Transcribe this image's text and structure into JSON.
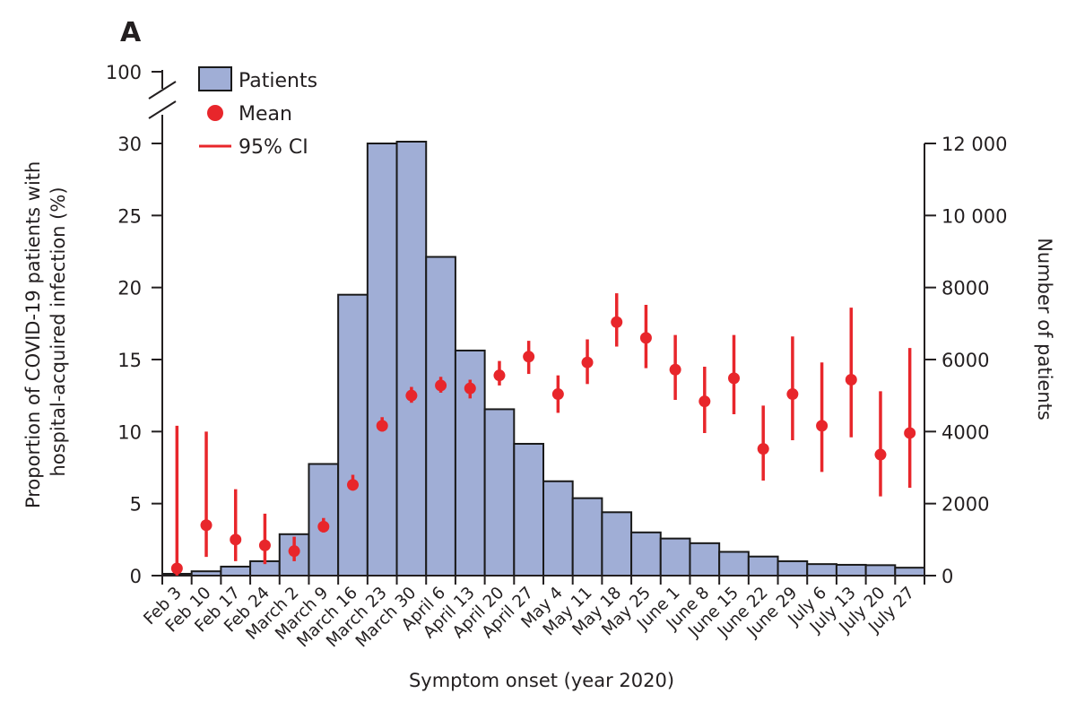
{
  "panel_label": "A",
  "colors": {
    "bar_fill": "#a0aed6",
    "bar_stroke": "#1a1a1a",
    "point": "#e8262b",
    "axis": "#231f20"
  },
  "chart_data": {
    "type": "bar",
    "xlabel": "Symptom onset (year 2020)",
    "ylabel": "Proportion of COVID-19 patients with hospital-acquired infection  (%)",
    "ylabel_lines": [
      "Proportion of COVID-19 patients with",
      "hospital-acquired infection  (%)"
    ],
    "y2label": "Number of patients",
    "ylim": [
      0,
      30
    ],
    "y_break_label": "100",
    "y_ticks": [
      "0",
      "5",
      "10",
      "15",
      "20",
      "25",
      "30"
    ],
    "y2lim": [
      0,
      12000
    ],
    "y2_ticks": [
      "0",
      "2000",
      "4000",
      "6000",
      "8000",
      "10 000",
      "12 000"
    ],
    "categories": [
      "Feb 3",
      "Feb 10",
      "Feb 17",
      "Feb 24",
      "March 2",
      "March 9",
      "March 16",
      "March 23",
      "March 30",
      "April 6",
      "April 13",
      "April 20",
      "April 27",
      "May 4",
      "May 11",
      "May 18",
      "May 25",
      "June 1",
      "June 8",
      "June 15",
      "June 22",
      "June 29",
      "July 6",
      "July 13",
      "July 20",
      "July 27"
    ],
    "legend": {
      "patients": "Patients",
      "mean": "Mean",
      "ci": "95% CI"
    },
    "series": [
      {
        "name": "Patients",
        "kind": "bar",
        "axis": "right",
        "values": [
          50,
          120,
          250,
          400,
          1150,
          3100,
          7800,
          12000,
          12050,
          8850,
          6250,
          4620,
          3660,
          2620,
          2150,
          1760,
          1200,
          1030,
          900,
          660,
          530,
          400,
          320,
          300,
          290,
          220
        ]
      },
      {
        "name": "Mean",
        "kind": "point",
        "axis": "left",
        "values": [
          0.5,
          3.5,
          2.5,
          2.1,
          1.7,
          3.4,
          6.3,
          10.4,
          12.5,
          13.2,
          13.0,
          13.9,
          15.2,
          12.6,
          14.8,
          17.6,
          16.5,
          14.3,
          12.1,
          13.7,
          8.8,
          12.6,
          10.4,
          13.6,
          8.4,
          9.9
        ]
      },
      {
        "name": "95% CI",
        "kind": "errorbar",
        "axis": "left",
        "lower": [
          0.0,
          1.3,
          1.0,
          0.8,
          1.0,
          3.0,
          5.9,
          10.0,
          12.0,
          12.7,
          12.3,
          13.2,
          14.0,
          11.3,
          13.3,
          15.9,
          14.4,
          12.2,
          9.9,
          11.2,
          6.6,
          9.4,
          7.2,
          9.6,
          5.5,
          6.1
        ],
        "upper": [
          10.4,
          10.0,
          6.0,
          4.3,
          2.7,
          4.0,
          7.0,
          11.0,
          13.1,
          13.8,
          13.6,
          14.9,
          16.3,
          13.9,
          16.4,
          19.6,
          18.8,
          16.7,
          14.5,
          16.7,
          11.8,
          16.6,
          14.8,
          18.6,
          12.8,
          15.8
        ]
      }
    ]
  }
}
